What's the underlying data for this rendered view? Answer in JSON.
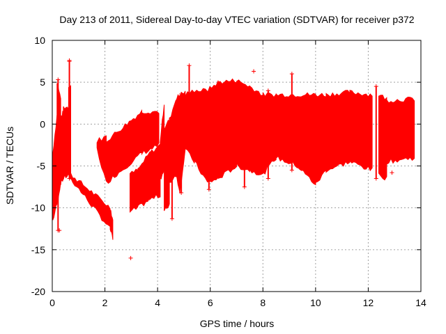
{
  "chart_data": {
    "type": "scatter",
    "title": "Day 213 of 2011, Sidereal Day-to-day VTEC variation (SDTVAR) for receiver p372",
    "xlabel": "GPS time / hours",
    "ylabel": "SDTVAR / TECUs",
    "xlim": [
      0,
      14
    ],
    "ylim": [
      -20,
      10
    ],
    "grid": true,
    "x_ticks": [
      0,
      2,
      4,
      6,
      8,
      10,
      12,
      14
    ],
    "y_ticks": [
      -20,
      -15,
      -10,
      -5,
      0,
      5,
      10
    ],
    "series_color": "#ff0000",
    "marker": "plus",
    "bands": [
      {
        "x0": 0.02,
        "x1": 0.18,
        "lo0": -11.5,
        "hi0": -3.5,
        "lo1": -9.5,
        "hi1": 1.0
      },
      {
        "x0": 0.18,
        "x1": 0.32,
        "lo0": -9.5,
        "hi0": 5.0,
        "lo1": -7.0,
        "hi1": 3.0
      },
      {
        "x0": 0.32,
        "x1": 0.42,
        "lo0": -7.0,
        "hi0": 0.5,
        "lo1": -6.5,
        "hi1": 1.5
      },
      {
        "x0": 0.42,
        "x1": 0.62,
        "lo0": -6.5,
        "hi0": 2.0,
        "lo1": -6.0,
        "hi1": 2.0
      },
      {
        "x0": 0.62,
        "x1": 0.7,
        "lo0": -6.0,
        "hi0": 4.5,
        "lo1": -6.5,
        "hi1": 4.5
      },
      {
        "x0": 0.7,
        "x1": 2.2,
        "lo0": -6.5,
        "hi0": -6.0,
        "lo1": -12.5,
        "hi1": -10.0
      },
      {
        "x0": 2.2,
        "x1": 2.3,
        "lo0": -12.5,
        "hi0": -10.0,
        "lo1": -13.8,
        "hi1": -11.5
      },
      {
        "x0": 1.7,
        "x1": 2.05,
        "lo0": -3.0,
        "hi0": -2.0,
        "lo1": -7.0,
        "hi1": -1.5
      },
      {
        "x0": 2.05,
        "x1": 3.4,
        "lo0": -7.0,
        "hi0": -2.0,
        "lo1": -3.5,
        "hi1": 1.5
      },
      {
        "x0": 3.4,
        "x1": 4.05,
        "lo0": -3.5,
        "hi0": 1.5,
        "lo1": -2.5,
        "hi1": 1.5
      },
      {
        "x0": 2.95,
        "x1": 3.25,
        "lo0": -10.5,
        "hi0": -6.0,
        "lo1": -10.0,
        "hi1": -5.5
      },
      {
        "x0": 3.25,
        "x1": 3.7,
        "lo0": -10.0,
        "hi0": -5.5,
        "lo1": -9.0,
        "hi1": -3.5
      },
      {
        "x0": 3.7,
        "x1": 4.1,
        "lo0": -9.0,
        "hi0": -3.5,
        "lo1": -8.5,
        "hi1": -2.5
      },
      {
        "x0": 4.1,
        "x1": 4.25,
        "lo0": -6.5,
        "hi0": -2.0,
        "lo1": -5.5,
        "hi1": 2.5
      },
      {
        "x0": 4.25,
        "x1": 4.45,
        "lo0": -10.5,
        "hi0": -0.5,
        "lo1": -9.5,
        "hi1": 0.5
      },
      {
        "x0": 4.45,
        "x1": 4.7,
        "lo0": -7.0,
        "hi0": 0.5,
        "lo1": -6.0,
        "hi1": 3.0
      },
      {
        "x0": 4.7,
        "x1": 4.85,
        "lo0": -6.0,
        "hi0": 3.0,
        "lo1": -8.0,
        "hi1": 3.5
      },
      {
        "x0": 4.85,
        "x1": 5.05,
        "lo0": -8.0,
        "hi0": 3.5,
        "lo1": -3.0,
        "hi1": 3.8
      },
      {
        "x0": 5.05,
        "x1": 5.4,
        "lo0": -3.0,
        "hi0": 3.5,
        "lo1": -4.5,
        "hi1": 4.0
      },
      {
        "x0": 5.4,
        "x1": 5.9,
        "lo0": -4.5,
        "hi0": 4.0,
        "lo1": -7.0,
        "hi1": 4.0
      },
      {
        "x0": 5.9,
        "x1": 6.3,
        "lo0": -7.0,
        "hi0": 4.0,
        "lo1": -6.5,
        "hi1": 5.0
      },
      {
        "x0": 6.3,
        "x1": 7.0,
        "lo0": -6.5,
        "hi0": 5.0,
        "lo1": -5.0,
        "hi1": 5.2
      },
      {
        "x0": 7.0,
        "x1": 7.5,
        "lo0": -5.0,
        "hi0": 5.2,
        "lo1": -5.5,
        "hi1": 4.5
      },
      {
        "x0": 7.5,
        "x1": 8.0,
        "lo0": -5.5,
        "hi0": 4.5,
        "lo1": -6.0,
        "hi1": 3.5
      },
      {
        "x0": 8.0,
        "x1": 8.5,
        "lo0": -6.0,
        "hi0": 3.5,
        "lo1": -4.0,
        "hi1": 3.5
      },
      {
        "x0": 8.5,
        "x1": 9.3,
        "lo0": -4.0,
        "hi0": 3.5,
        "lo1": -5.0,
        "hi1": 3.5
      },
      {
        "x0": 9.3,
        "x1": 10.0,
        "lo0": -5.0,
        "hi0": 3.5,
        "lo1": -7.2,
        "hi1": 3.5
      },
      {
        "x0": 10.0,
        "x1": 10.4,
        "lo0": -7.2,
        "hi0": 3.5,
        "lo1": -5.5,
        "hi1": 3.5
      },
      {
        "x0": 10.4,
        "x1": 11.3,
        "lo0": -5.5,
        "hi0": 3.5,
        "lo1": -4.5,
        "hi1": 3.8
      },
      {
        "x0": 11.3,
        "x1": 12.15,
        "lo0": -4.5,
        "hi0": 3.8,
        "lo1": -5.5,
        "hi1": 3.5
      },
      {
        "x0": 12.4,
        "x1": 12.7,
        "lo0": -6.0,
        "hi0": 3.5,
        "lo1": -6.5,
        "hi1": 3.0
      },
      {
        "x0": 12.7,
        "x1": 13.75,
        "lo0": -4.5,
        "hi0": 2.8,
        "lo1": -4.0,
        "hi1": 3.0
      }
    ],
    "spikes": [
      {
        "x": 0.22,
        "lo": -12.7,
        "hi": 5.3
      },
      {
        "x": 0.65,
        "lo": -6.5,
        "hi": 7.5
      },
      {
        "x": 4.55,
        "lo": -11.3,
        "hi": 0.5
      },
      {
        "x": 4.9,
        "lo": -8.2,
        "hi": 3.6
      },
      {
        "x": 5.2,
        "lo": -3.0,
        "hi": 7.0
      },
      {
        "x": 5.95,
        "lo": -7.8,
        "hi": 3.0
      },
      {
        "x": 7.3,
        "lo": -7.5,
        "hi": 3.0
      },
      {
        "x": 8.2,
        "lo": -6.5,
        "hi": 4.0
      },
      {
        "x": 9.1,
        "lo": -5.5,
        "hi": 6.0
      },
      {
        "x": 12.3,
        "lo": -6.5,
        "hi": 4.5
      }
    ],
    "outliers": [
      {
        "x": 2.98,
        "y": -16.0
      },
      {
        "x": 0.27,
        "y": -12.7
      },
      {
        "x": 0.65,
        "y": 7.6
      },
      {
        "x": 7.65,
        "y": 6.3
      },
      {
        "x": 12.9,
        "y": -5.8
      }
    ]
  }
}
